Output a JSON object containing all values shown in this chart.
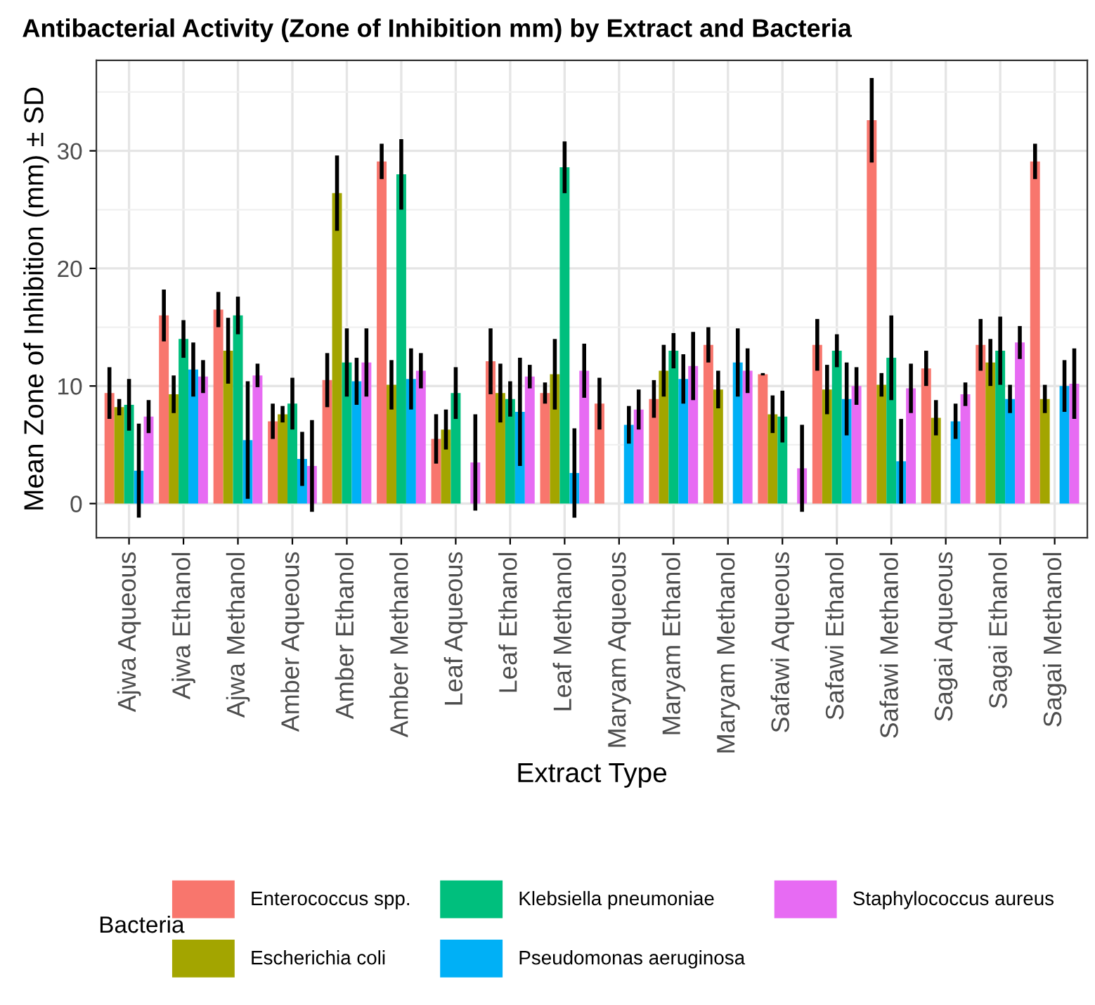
{
  "chart_data": {
    "type": "bar",
    "title": "Antibacterial Activity (Zone of Inhibition mm) by Extract and Bacteria",
    "xlabel": "Extract Type",
    "ylabel": "Mean Zone of Inhibition (mm) ± SD",
    "legend_title": "Bacteria",
    "categories": [
      "Ajwa Aqueous",
      "Ajwa Ethanol",
      "Ajwa Methanol",
      "Amber Aqueous",
      "Amber Ethanol",
      "Amber Methanol",
      "Leaf Aqueous",
      "Leaf Ethanol",
      "Leaf Methanol",
      "Maryam Aqueous",
      "Maryam Ethanol",
      "Maryam Methanol",
      "Safawi Aqueous",
      "Safawi Ethanol",
      "Safawi Methanol",
      "Sagai Aqueous",
      "Sagai Ethanol",
      "Sagai Methanol"
    ],
    "series": [
      {
        "name": "Enterococcus spp.",
        "color": "#f8766d",
        "values": [
          9.4,
          16.0,
          16.5,
          7.0,
          10.5,
          29.1,
          5.5,
          12.1,
          9.4,
          8.5,
          8.9,
          13.5,
          11.0,
          13.5,
          32.6,
          11.5,
          13.5,
          29.1
        ],
        "errors": [
          2.2,
          2.2,
          1.5,
          1.5,
          2.3,
          1.5,
          2.1,
          2.8,
          0.9,
          2.2,
          1.6,
          1.5,
          0.1,
          2.2,
          3.6,
          1.5,
          2.2,
          1.5
        ]
      },
      {
        "name": "Escherichia coli",
        "color": "#a3a500",
        "values": [
          8.2,
          9.3,
          13.0,
          7.6,
          26.4,
          10.1,
          6.3,
          9.4,
          11.0,
          0,
          11.3,
          9.7,
          7.6,
          9.7,
          10.1,
          7.3,
          12.0,
          8.9
        ],
        "errors": [
          0.7,
          1.6,
          2.8,
          0.7,
          3.2,
          2.1,
          1.7,
          2.5,
          3.0,
          0,
          2.2,
          1.6,
          1.6,
          2.1,
          1.0,
          1.5,
          2.0,
          1.2
        ]
      },
      {
        "name": "Klebsiella pneumoniae",
        "color": "#00bf7d",
        "values": [
          8.4,
          14.0,
          16.0,
          8.5,
          12.0,
          28.0,
          9.4,
          8.9,
          28.6,
          0,
          13.0,
          0,
          7.4,
          13.0,
          12.4,
          0,
          13.0,
          0
        ],
        "errors": [
          2.2,
          1.6,
          1.6,
          2.2,
          2.9,
          3.0,
          2.2,
          1.5,
          2.2,
          0,
          1.5,
          0,
          2.2,
          1.4,
          3.6,
          0,
          2.9,
          0
        ]
      },
      {
        "name": "Pseudomonas aeruginosa",
        "color": "#00b0f6",
        "values": [
          2.8,
          11.4,
          5.4,
          3.8,
          10.4,
          10.6,
          0,
          7.8,
          2.6,
          6.7,
          10.6,
          12.0,
          0,
          8.9,
          3.6,
          7.0,
          8.9,
          10.0
        ],
        "errors": [
          4.0,
          2.3,
          5.0,
          2.3,
          2.0,
          2.6,
          0,
          4.6,
          3.8,
          1.6,
          2.1,
          2.9,
          0,
          3.1,
          3.6,
          1.5,
          1.2,
          2.2
        ]
      },
      {
        "name": "Staphylococcus aureus",
        "color": "#e76bf3",
        "values": [
          7.4,
          10.8,
          10.9,
          3.2,
          12.0,
          11.3,
          3.5,
          10.8,
          11.3,
          8.0,
          11.7,
          11.3,
          3.0,
          10.0,
          9.8,
          9.3,
          13.7,
          10.2
        ],
        "errors": [
          1.4,
          1.4,
          1.0,
          3.9,
          2.9,
          1.5,
          4.1,
          1.0,
          2.3,
          1.7,
          2.9,
          1.9,
          3.7,
          1.6,
          2.1,
          1.0,
          1.4,
          3.0
        ]
      }
    ],
    "ylim": [
      -2.9,
      37.7
    ],
    "yticks": [
      0,
      10,
      20,
      30
    ],
    "grid": true,
    "legend": "bottom"
  }
}
